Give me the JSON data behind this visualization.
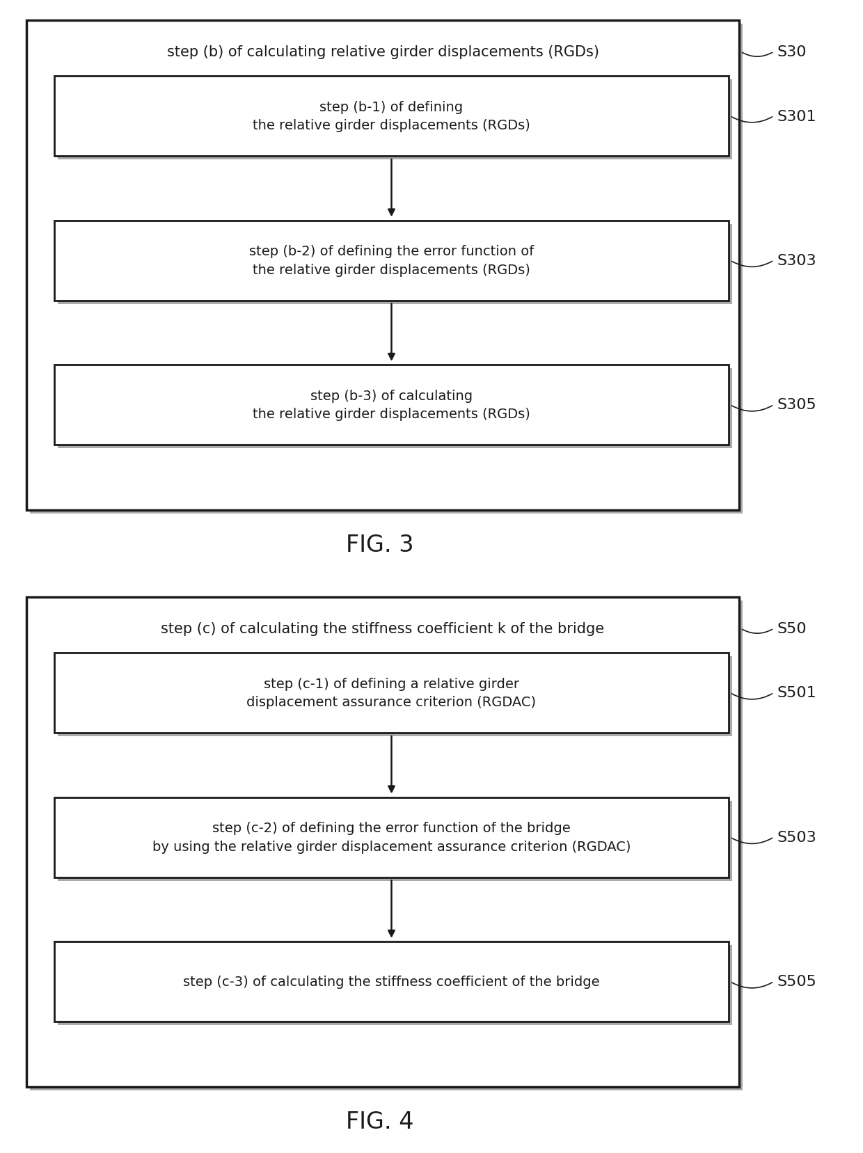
{
  "fig3": {
    "title": "FIG. 3",
    "outer_label": "step (b) of calculating relative girder displacements (RGDs)",
    "outer_tag": "S30",
    "steps": [
      {
        "text": "step (b-1) of defining\nthe relative girder displacements (RGDs)",
        "tag": "S301"
      },
      {
        "text": "step (b-2) of defining the error function of\nthe relative girder displacements (RGDs)",
        "tag": "S303"
      },
      {
        "text": "step (b-3) of calculating\nthe relative girder displacements (RGDs)",
        "tag": "S305"
      }
    ]
  },
  "fig4": {
    "title": "FIG. 4",
    "outer_label": "step (c) of calculating the stiffness coefficient k of the bridge",
    "outer_tag": "S50",
    "steps": [
      {
        "text": "step (c-1) of defining a relative girder\ndisplacement assurance criterion (RGDAC)",
        "tag": "S501"
      },
      {
        "text": "step (c-2) of defining the error function of the bridge\nby using the relative girder displacement assurance criterion (RGDAC)",
        "tag": "S503"
      },
      {
        "text": "step (c-3) of calculating the stiffness coefficient of the bridge",
        "tag": "S505"
      }
    ]
  },
  "bg_color": "#ffffff",
  "box_face_color": "#ffffff",
  "box_edge_color": "#1a1a1a",
  "shadow_color": "#aaaaaa",
  "text_color": "#1a1a1a",
  "arrow_color": "#1a1a1a",
  "tag_color": "#1a1a1a",
  "fig_label_fontsize": 24,
  "outer_label_fontsize": 15,
  "step_fontsize": 14,
  "tag_fontsize": 16
}
